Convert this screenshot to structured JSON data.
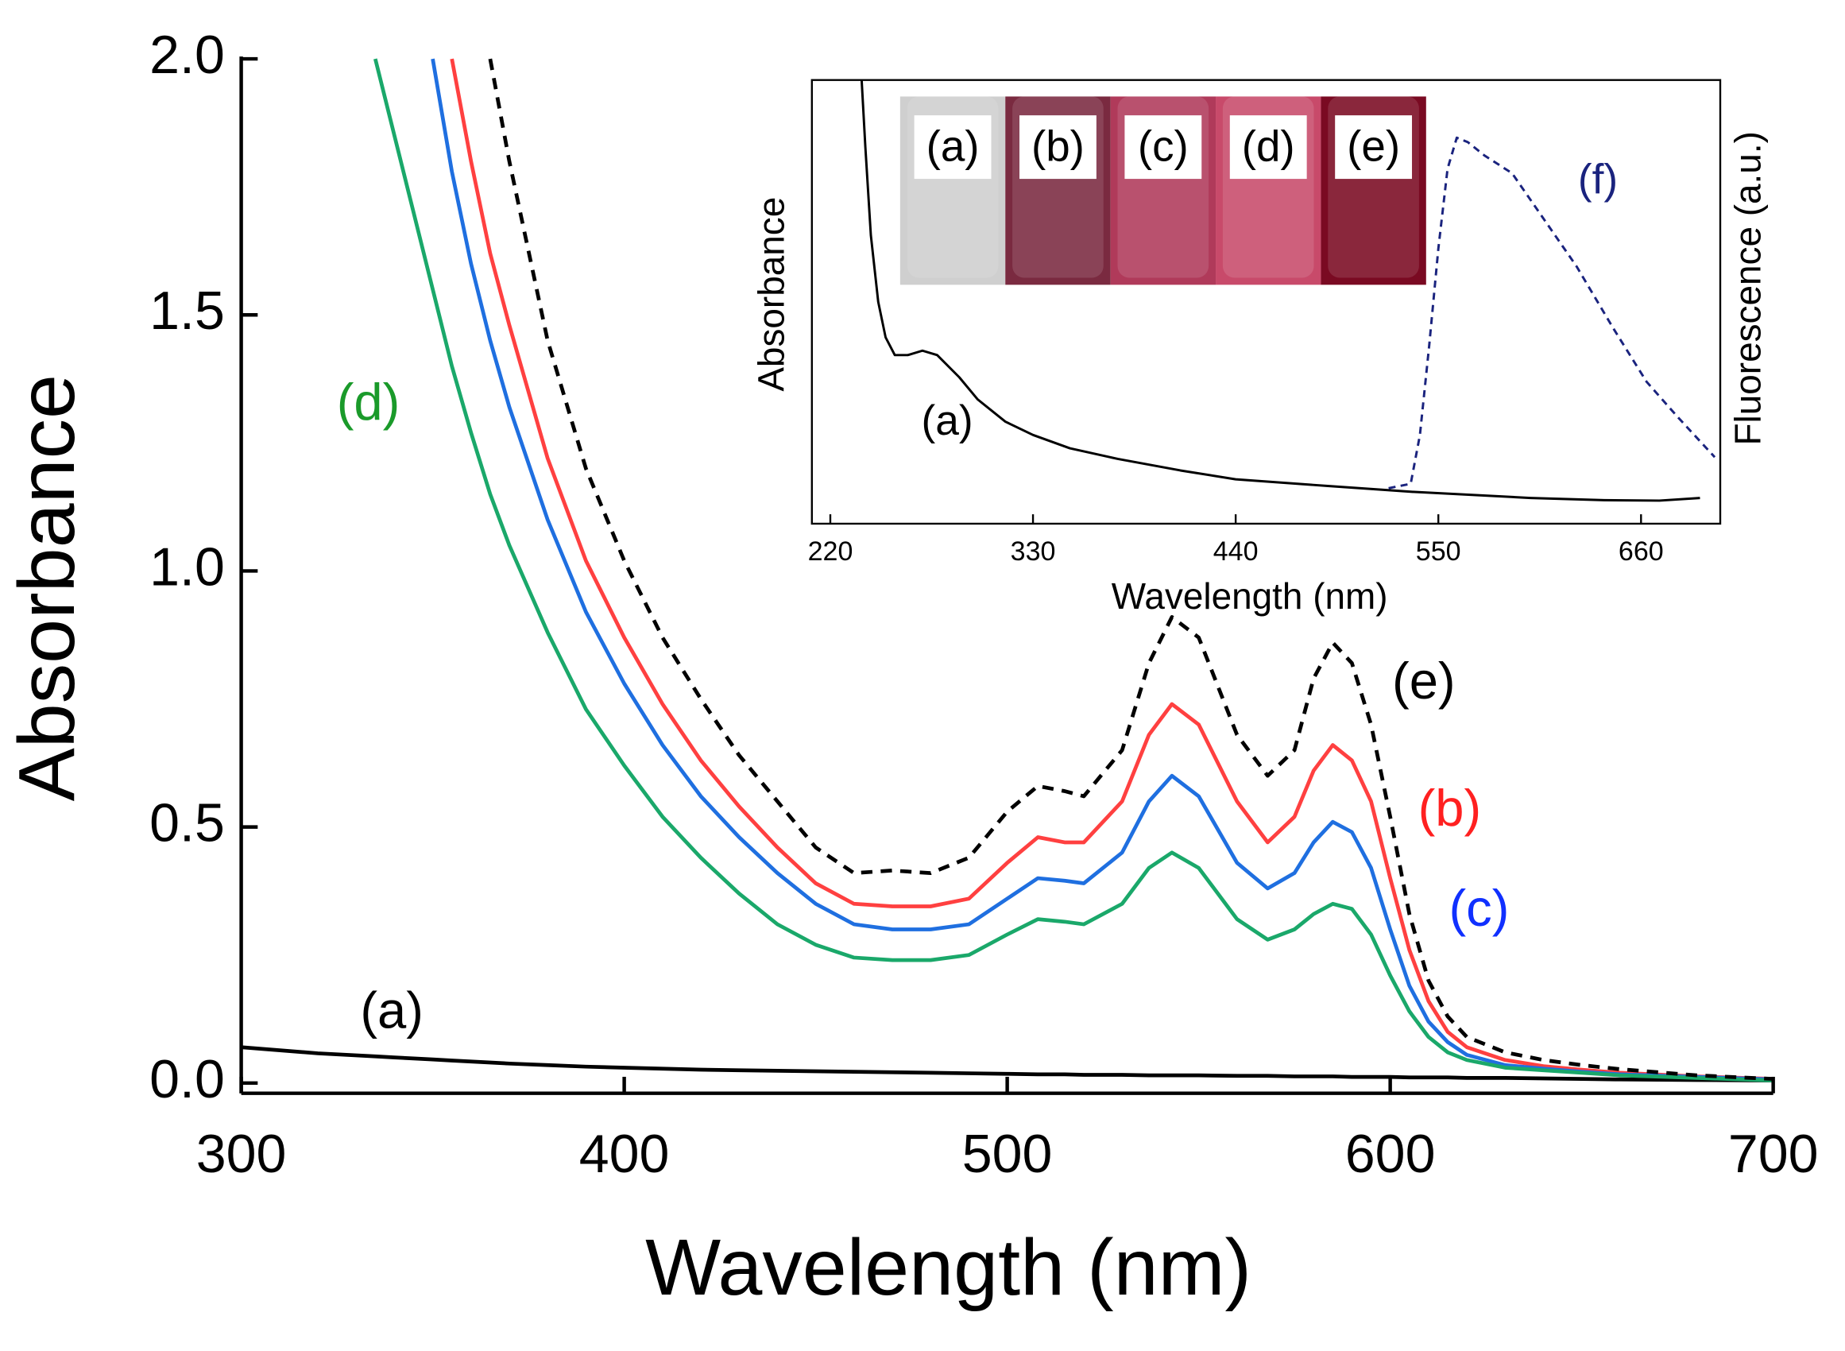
{
  "chart_data": [
    {
      "type": "line",
      "x_label": "Wavelength (nm)",
      "y_label": "Absorbance",
      "xlim": [
        300,
        700
      ],
      "ylim": [
        -0.02,
        2.0
      ],
      "xticks": [
        300,
        400,
        500,
        600,
        700
      ],
      "yticks": [
        {
          "value": 0,
          "label": "0.0"
        },
        {
          "value": 0.5,
          "label": "0.5"
        },
        {
          "value": 1,
          "label": "1.0"
        },
        {
          "value": 1.5,
          "label": "1.5"
        },
        {
          "value": 2,
          "label": "2.0"
        }
      ],
      "x": [
        300,
        320,
        335,
        340,
        345,
        350,
        355,
        360,
        365,
        370,
        380,
        390,
        400,
        410,
        420,
        430,
        440,
        450,
        460,
        470,
        480,
        490,
        500,
        508,
        515,
        520,
        530,
        537,
        543,
        550,
        560,
        568,
        575,
        580,
        585,
        590,
        595,
        600,
        605,
        610,
        615,
        620,
        630,
        640,
        650,
        660,
        680,
        700
      ],
      "series": [
        {
          "name": "(a)",
          "color": "#000000",
          "dashed": false,
          "values": [
            0.07,
            0.058,
            0.052,
            0.05,
            0.048,
            0.046,
            0.044,
            0.042,
            0.04,
            0.038,
            0.035,
            0.032,
            0.03,
            0.028,
            0.026,
            0.025,
            0.024,
            0.023,
            0.022,
            0.021,
            0.02,
            0.019,
            0.018,
            0.017,
            0.017,
            0.016,
            0.016,
            0.015,
            0.015,
            0.015,
            0.014,
            0.014,
            0.013,
            0.013,
            0.013,
            0.012,
            0.012,
            0.012,
            0.011,
            0.011,
            0.011,
            0.01,
            0.01,
            0.009,
            0.008,
            0.007,
            0.006,
            0.005
          ]
        },
        {
          "name": "(b)",
          "color": "#ff4040",
          "dashed": false,
          "values": [
            null,
            null,
            null,
            null,
            null,
            null,
            2.0,
            1.8,
            1.62,
            1.48,
            1.22,
            1.02,
            0.87,
            0.74,
            0.63,
            0.54,
            0.46,
            0.39,
            0.35,
            0.345,
            0.345,
            0.36,
            0.43,
            0.48,
            0.47,
            0.47,
            0.55,
            0.68,
            0.74,
            0.7,
            0.55,
            0.47,
            0.52,
            0.61,
            0.66,
            0.63,
            0.55,
            0.4,
            0.26,
            0.16,
            0.1,
            0.07,
            0.045,
            0.033,
            0.026,
            0.02,
            0.013,
            0.008
          ]
        },
        {
          "name": "(c)",
          "color": "#1f6fe0",
          "dashed": false,
          "values": [
            null,
            null,
            null,
            null,
            null,
            2.0,
            1.78,
            1.6,
            1.45,
            1.32,
            1.1,
            0.92,
            0.78,
            0.66,
            0.56,
            0.48,
            0.41,
            0.35,
            0.31,
            0.3,
            0.3,
            0.31,
            0.36,
            0.4,
            0.395,
            0.39,
            0.45,
            0.55,
            0.6,
            0.56,
            0.43,
            0.38,
            0.41,
            0.47,
            0.51,
            0.49,
            0.42,
            0.3,
            0.19,
            0.12,
            0.08,
            0.055,
            0.035,
            0.028,
            0.022,
            0.017,
            0.012,
            0.007
          ]
        },
        {
          "name": "(d)",
          "color": "#1aa86a",
          "dashed": false,
          "values": [
            null,
            null,
            2.0,
            1.85,
            1.7,
            1.55,
            1.4,
            1.27,
            1.15,
            1.05,
            0.88,
            0.73,
            0.62,
            0.52,
            0.44,
            0.37,
            0.31,
            0.27,
            0.245,
            0.24,
            0.24,
            0.25,
            0.29,
            0.32,
            0.315,
            0.31,
            0.35,
            0.42,
            0.45,
            0.42,
            0.32,
            0.28,
            0.3,
            0.33,
            0.35,
            0.34,
            0.29,
            0.21,
            0.14,
            0.09,
            0.06,
            0.045,
            0.03,
            0.025,
            0.02,
            0.015,
            0.01,
            0.005
          ]
        },
        {
          "name": "(e)",
          "color": "#000000",
          "dashed": true,
          "values": [
            null,
            null,
            null,
            null,
            null,
            null,
            null,
            null,
            2.0,
            1.8,
            1.45,
            1.2,
            1.02,
            0.87,
            0.75,
            0.64,
            0.55,
            0.46,
            0.41,
            0.415,
            0.41,
            0.44,
            0.53,
            0.58,
            0.57,
            0.56,
            0.65,
            0.82,
            0.91,
            0.87,
            0.68,
            0.6,
            0.65,
            0.79,
            0.86,
            0.82,
            0.7,
            0.52,
            0.33,
            0.2,
            0.13,
            0.09,
            0.06,
            0.045,
            0.035,
            0.027,
            0.015,
            0.008
          ]
        }
      ],
      "annotations": [
        {
          "text": "(d)",
          "color": "#1a9a2a"
        },
        {
          "text": "(a)",
          "color": "#000000"
        },
        {
          "text": "(e)",
          "color": "#000000"
        },
        {
          "text": "(b)",
          "color": "#ff2020"
        },
        {
          "text": "(c)",
          "color": "#1030ff"
        }
      ]
    },
    {
      "type": "line",
      "x_label": "Wavelength (nm)",
      "y_label": "Absorbance",
      "y2_label": "Fluorescence (a.u.)",
      "xlim": [
        210,
        703
      ],
      "ylim": [
        0,
        1
      ],
      "y2lim": [
        0,
        1
      ],
      "xticks": [
        220,
        330,
        440,
        550,
        660
      ],
      "series": [
        {
          "name": "(a)",
          "color": "#000000",
          "dashed": false,
          "x": [
            237,
            239,
            242,
            246,
            250,
            255,
            262,
            270,
            278,
            290,
            300,
            315,
            330,
            350,
            376,
            410,
            440,
            490,
            535,
            600,
            640,
            670,
            692
          ],
          "values": [
            1.0,
            0.85,
            0.65,
            0.5,
            0.42,
            0.38,
            0.38,
            0.39,
            0.38,
            0.33,
            0.28,
            0.23,
            0.2,
            0.17,
            0.146,
            0.12,
            0.1,
            0.085,
            0.072,
            0.058,
            0.053,
            0.052,
            0.058
          ]
        },
        {
          "name": "(f)",
          "color": "#1a237e",
          "dashed": true,
          "axis": "y2",
          "x": [
            523,
            535,
            540,
            545,
            550,
            555,
            560,
            566,
            575,
            590,
            605,
            625,
            645,
            663,
            680,
            700
          ],
          "values": [
            0.08,
            0.09,
            0.2,
            0.4,
            0.62,
            0.8,
            0.87,
            0.86,
            0.83,
            0.79,
            0.7,
            0.58,
            0.44,
            0.32,
            0.24,
            0.15
          ]
        }
      ],
      "annotations": [
        {
          "text": "(a)",
          "color": "#000000"
        },
        {
          "text": "(f)",
          "color": "#1a237e"
        }
      ]
    }
  ],
  "photos": [
    {
      "label": "(a)",
      "color": "#cfcfcf"
    },
    {
      "label": "(b)",
      "color": "#7a2a40"
    },
    {
      "label": "(c)",
      "color": "#b03a5a"
    },
    {
      "label": "(d)",
      "color": "#c84a6a"
    },
    {
      "label": "(e)",
      "color": "#7a0a22"
    }
  ]
}
